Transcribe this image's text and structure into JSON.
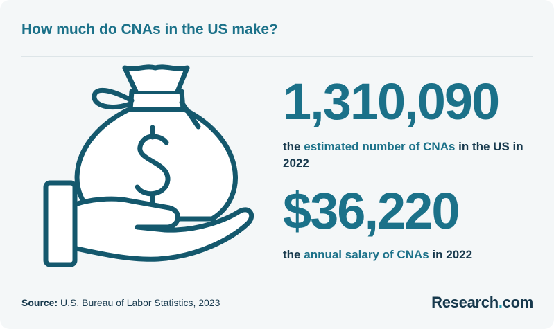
{
  "title": "How much do CNAs in the US make?",
  "stats": [
    {
      "number": "1,310,090",
      "desc_pre": "the ",
      "desc_highlight": "estimated number of CNAs",
      "desc_post": " in the US in 2022"
    },
    {
      "number": "$36,220",
      "desc_pre": "the ",
      "desc_highlight": "annual salary of CNAs",
      "desc_post": " in 2022"
    }
  ],
  "source": {
    "label": "Source:",
    "text": " U.S. Bureau of Labor Statistics, 2023"
  },
  "brand": {
    "name": "Research",
    "dot": ".",
    "tld": "com"
  },
  "illustration": {
    "icon": "money-bag-in-hand-icon",
    "stroke_color": "#14586d",
    "fill_color": "#ffffff"
  },
  "colors": {
    "accent": "#1b7189",
    "dark": "#17394d",
    "background": "#f4f7f8"
  }
}
